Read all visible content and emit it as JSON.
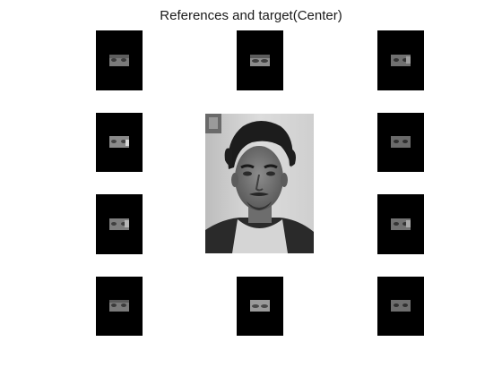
{
  "figure": {
    "title": "References and target(Center)"
  },
  "reference_images": [
    {
      "id": "ref-1",
      "content": "eye-region-crop"
    },
    {
      "id": "ref-2",
      "content": "eye-region-crop"
    },
    {
      "id": "ref-3",
      "content": "eye-region-crop"
    },
    {
      "id": "ref-4",
      "content": "eye-region-crop"
    },
    {
      "id": "ref-5",
      "content": "eye-region-crop"
    },
    {
      "id": "ref-6",
      "content": "eye-region-crop"
    },
    {
      "id": "ref-7",
      "content": "eye-region-crop"
    },
    {
      "id": "ref-8",
      "content": "eye-region-crop"
    },
    {
      "id": "ref-9",
      "content": "eye-region-crop"
    },
    {
      "id": "ref-10",
      "content": "eye-region-crop"
    }
  ],
  "target_image": {
    "content": "grayscale-portrait-photo"
  },
  "colors": {
    "background": "#ffffff",
    "tile": "#000000",
    "crop_gray": "#8a8a8a"
  }
}
